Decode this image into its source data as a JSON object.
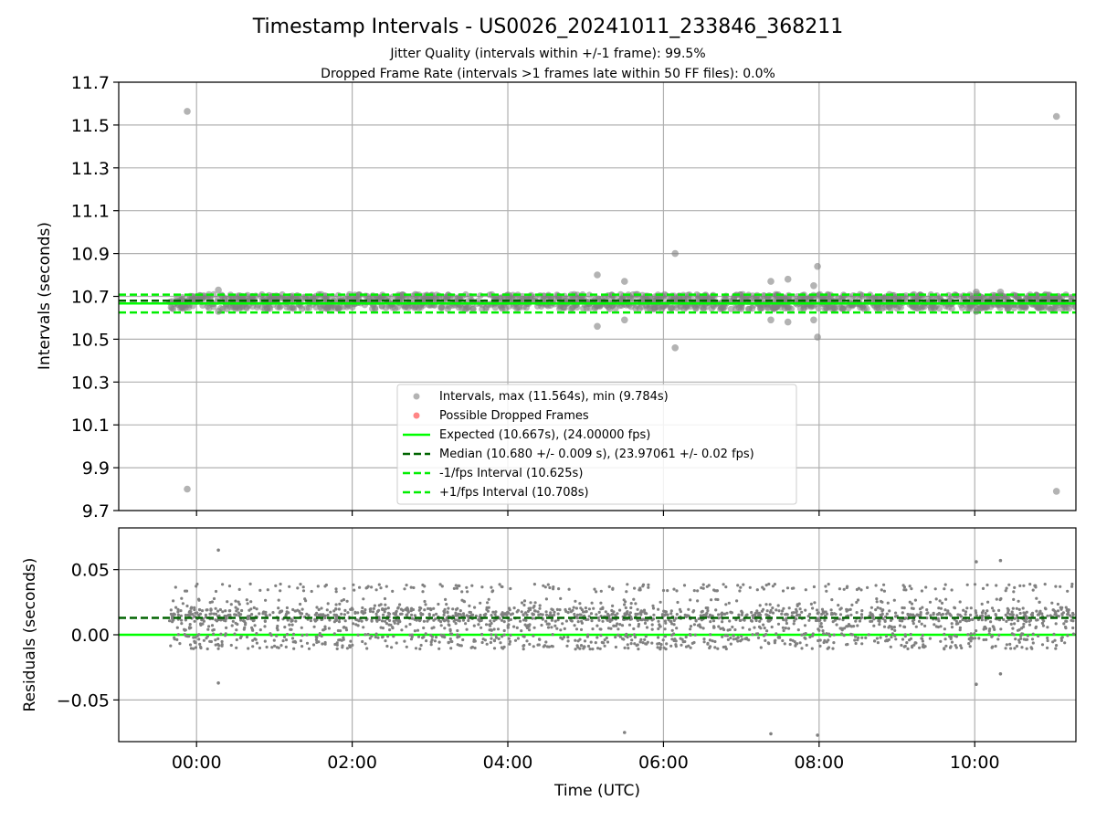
{
  "figure": {
    "title": "Timestamp Intervals - US0026_20241011_233846_368211",
    "subtitle_line1": "Jitter Quality (intervals within +/-1 frame): 99.5%",
    "subtitle_line2": "Dropped Frame Rate (intervals >1 frames late within 50 FF files): 0.0%"
  },
  "colors": {
    "points": "#808080",
    "expected": "#00ff00",
    "median": "#006400",
    "fps_bounds": "#00ee00",
    "dropped": "#ff3333",
    "grid": "#b0b0b0"
  },
  "chart_data": [
    {
      "type": "scatter",
      "panel": "intervals",
      "xlabel": "",
      "ylabel": "Intervals (seconds)",
      "xlim_hours": [
        -1.0,
        11.3
      ],
      "ylim": [
        9.7,
        11.7
      ],
      "yticks": [
        "11.7",
        "11.5",
        "11.3",
        "11.1",
        "10.9",
        "10.7",
        "10.5",
        "10.3",
        "10.1",
        "9.9",
        "9.7"
      ],
      "ytick_values": [
        11.7,
        11.5,
        11.3,
        11.1,
        10.9,
        10.7,
        10.5,
        10.3,
        10.1,
        9.9,
        9.7
      ],
      "grid": true,
      "lines": {
        "expected": 10.667,
        "median": 10.68,
        "minus_one_fps": 10.625,
        "plus_one_fps": 10.708
      },
      "dense_band": {
        "x_range_hours": [
          -0.35,
          11.3
        ],
        "y_min": 10.64,
        "y_max": 10.71
      },
      "outliers": [
        {
          "x": -0.12,
          "y": 11.564
        },
        {
          "x": -0.12,
          "y": 9.8
        },
        {
          "x": 0.28,
          "y": 10.73
        },
        {
          "x": 0.28,
          "y": 10.63
        },
        {
          "x": 5.15,
          "y": 10.8
        },
        {
          "x": 5.15,
          "y": 10.56
        },
        {
          "x": 5.5,
          "y": 10.77
        },
        {
          "x": 5.5,
          "y": 10.59
        },
        {
          "x": 6.15,
          "y": 10.9
        },
        {
          "x": 6.15,
          "y": 10.46
        },
        {
          "x": 7.38,
          "y": 10.77
        },
        {
          "x": 7.38,
          "y": 10.59
        },
        {
          "x": 7.6,
          "y": 10.78
        },
        {
          "x": 7.6,
          "y": 10.58
        },
        {
          "x": 7.93,
          "y": 10.75
        },
        {
          "x": 7.93,
          "y": 10.59
        },
        {
          "x": 7.98,
          "y": 10.84
        },
        {
          "x": 7.98,
          "y": 10.51
        },
        {
          "x": 10.02,
          "y": 10.72
        },
        {
          "x": 10.02,
          "y": 10.63
        },
        {
          "x": 10.33,
          "y": 10.72
        },
        {
          "x": 11.05,
          "y": 11.54
        },
        {
          "x": 11.05,
          "y": 9.79
        }
      ],
      "legend": {
        "position": "lower-center",
        "entries": [
          {
            "label": "Intervals, max (11.564s), min (9.784s)",
            "marker": "dot-gray"
          },
          {
            "label": "Possible Dropped Frames",
            "marker": "dot-red"
          },
          {
            "label": "Expected (10.667s), (24.00000 fps)",
            "marker": "line-solid-lime"
          },
          {
            "label": "Median (10.680 +/- 0.009 s), (23.97061 +/- 0.02 fps)",
            "marker": "line-dashed-darkgreen"
          },
          {
            "label": "-1/fps Interval (10.625s)",
            "marker": "line-dashed-lime"
          },
          {
            "label": "+1/fps Interval (10.708s)",
            "marker": "line-dashed-lime"
          }
        ]
      }
    },
    {
      "type": "scatter",
      "panel": "residuals",
      "xlabel": "Time (UTC)",
      "ylabel": "Residuals (seconds)",
      "xlim_hours": [
        -1.0,
        11.3
      ],
      "ylim": [
        -0.082,
        0.082
      ],
      "yticks": [
        "0.05",
        "0.00",
        "−0.05"
      ],
      "ytick_values": [
        0.05,
        0.0,
        -0.05
      ],
      "xticks": [
        "00:00",
        "02:00",
        "04:00",
        "06:00",
        "08:00",
        "10:00"
      ],
      "xtick_values": [
        0,
        2,
        4,
        6,
        8,
        10
      ],
      "grid": true,
      "lines": {
        "expected": 0.0,
        "median": 0.013
      },
      "band_levels": [
        0.036,
        0.025,
        0.018,
        0.013,
        0.006,
        -0.002,
        -0.008
      ],
      "band_x_range_hours": [
        -0.35,
        11.3
      ],
      "outliers": [
        {
          "x": 0.28,
          "y": 0.065
        },
        {
          "x": 0.28,
          "y": -0.037
        },
        {
          "x": 5.5,
          "y": -0.075
        },
        {
          "x": 7.38,
          "y": -0.076
        },
        {
          "x": 7.98,
          "y": -0.077
        },
        {
          "x": 10.02,
          "y": 0.056
        },
        {
          "x": 10.02,
          "y": -0.038
        },
        {
          "x": 10.33,
          "y": 0.057
        },
        {
          "x": 10.33,
          "y": -0.03
        }
      ]
    }
  ]
}
